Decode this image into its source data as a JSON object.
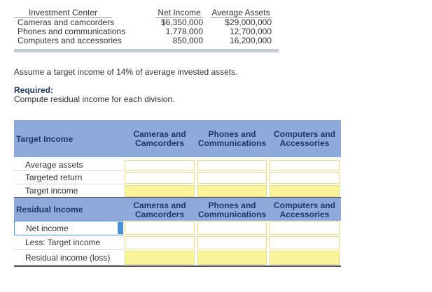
{
  "top_table": {
    "headers": [
      "Investment Center",
      "Net Income",
      "Average Assets"
    ],
    "rows": [
      [
        "Cameras and camcorders",
        "$6,350,000",
        "$29,000,000"
      ],
      [
        "Phones and communications",
        "1,778,000",
        "12,700,000"
      ],
      [
        "Computers and accessories",
        "850,000",
        "16,200,000"
      ]
    ]
  },
  "assumption": "Assume a target income of 14% of average invested assets.",
  "required_label": "Required:",
  "required_text": "Compute residual income for each division.",
  "sections": [
    {
      "title": "Target Income",
      "columns": [
        [
          "Cameras and",
          "Camcorders"
        ],
        [
          "Phones and",
          "Communications"
        ],
        [
          "Computers and",
          "Accessories"
        ]
      ],
      "rows": [
        "Average assets",
        "Targeted return",
        "Target income"
      ]
    },
    {
      "title": "Residual Income",
      "columns": [
        [
          "Cameras and",
          "Camcorders"
        ],
        [
          "Phones and",
          "Communications"
        ],
        [
          "Computers and",
          "Accessories"
        ]
      ],
      "rows": [
        "Net income",
        "Less: Target income",
        "Residual income (loss)"
      ]
    }
  ]
}
